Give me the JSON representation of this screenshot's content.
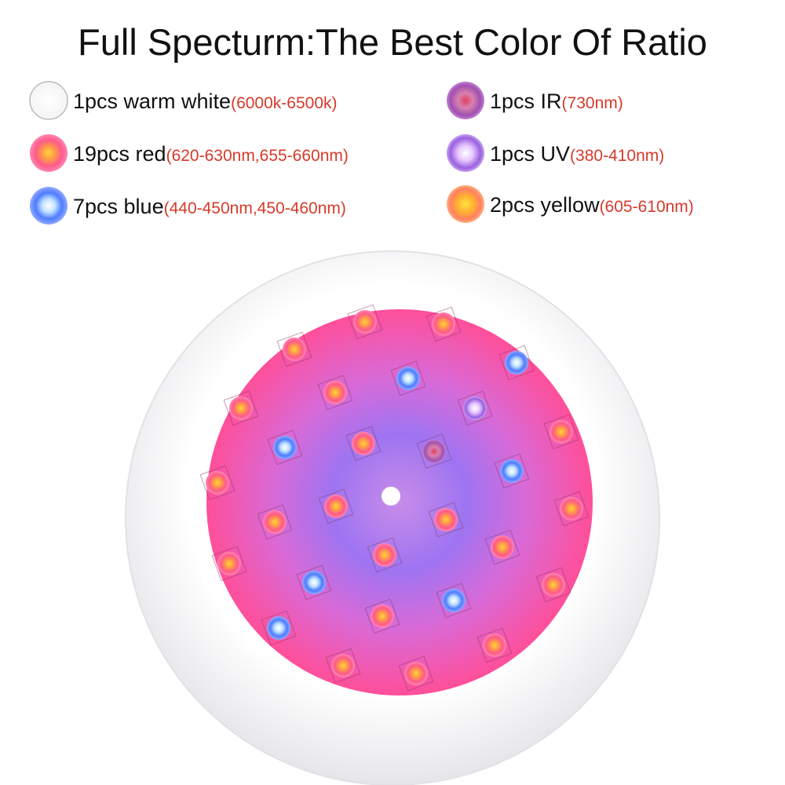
{
  "title": "Full Specturm:The Best Color Of Ratio",
  "legend": [
    {
      "label": "1pcs warm white",
      "spec": "(6000k-6500k)"
    },
    {
      "label": "19pcs red",
      "spec": "(620-630nm,655-660nm)"
    },
    {
      "label": "7pcs blue",
      "spec": "(440-450nm,450-460nm)"
    },
    {
      "label": "1pcs IR",
      "spec": "(730nm)"
    },
    {
      "label": "1pcs UV",
      "spec": "(380-410nm)"
    },
    {
      "label": "2pcs yellow",
      "spec": "(605-610nm)"
    }
  ]
}
